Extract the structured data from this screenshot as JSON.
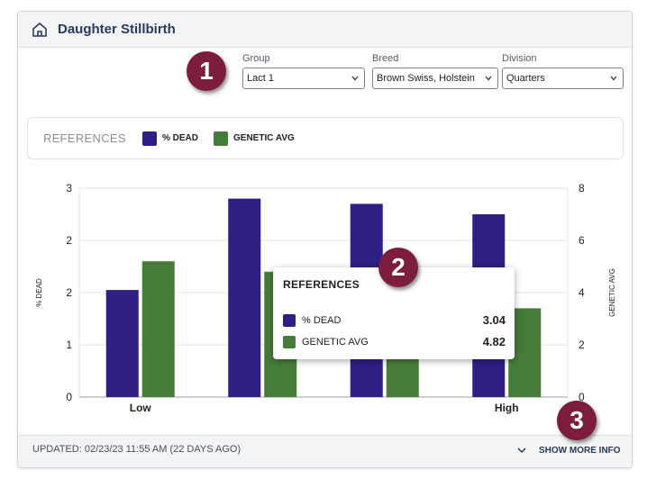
{
  "title": "Daughter Stillbirth",
  "callouts": [
    "1",
    "2",
    "3"
  ],
  "filters": {
    "group": {
      "label": "Group",
      "value": "Lact 1"
    },
    "breed": {
      "label": "Breed",
      "value": "Brown Swiss, Holstein"
    },
    "division": {
      "label": "Division",
      "value": "Quarters"
    }
  },
  "references": {
    "title": "REFERENCES",
    "items": [
      {
        "label": "% DEAD",
        "color": "#2f1f85"
      },
      {
        "label": "GENETIC AVG",
        "color": "#467c3a"
      }
    ]
  },
  "chart_data": {
    "type": "bar",
    "categories": [
      "Low",
      "",
      "",
      "High"
    ],
    "series": [
      {
        "name": "% DEAD",
        "axis": "left",
        "color": "#2f1f85",
        "values": [
          2.05,
          3.8,
          3.7,
          3.5
        ]
      },
      {
        "name": "GENETIC AVG",
        "axis": "right",
        "color": "#467c3a",
        "values": [
          5.2,
          4.8,
          3.6,
          3.4
        ]
      }
    ],
    "left_axis": {
      "label": "% DEAD",
      "ticks": [
        "0",
        "1",
        "2",
        "2",
        "3"
      ],
      "ylim": [
        0,
        4
      ]
    },
    "right_axis": {
      "label": "GENETIC AVG",
      "ticks": [
        "0",
        "2",
        "4",
        "6",
        "8"
      ],
      "ylim": [
        0,
        8
      ]
    }
  },
  "tooltip": {
    "title": "REFERENCES",
    "rows": [
      {
        "label": "% DEAD",
        "value": "3.04",
        "color": "#2f1f85"
      },
      {
        "label": "GENETIC AVG",
        "value": "4.82",
        "color": "#467c3a"
      }
    ]
  },
  "footer": {
    "updated": "UPDATED: 02/23/23 11:55 AM (22 DAYS AGO)",
    "more": "SHOW MORE INFO"
  }
}
